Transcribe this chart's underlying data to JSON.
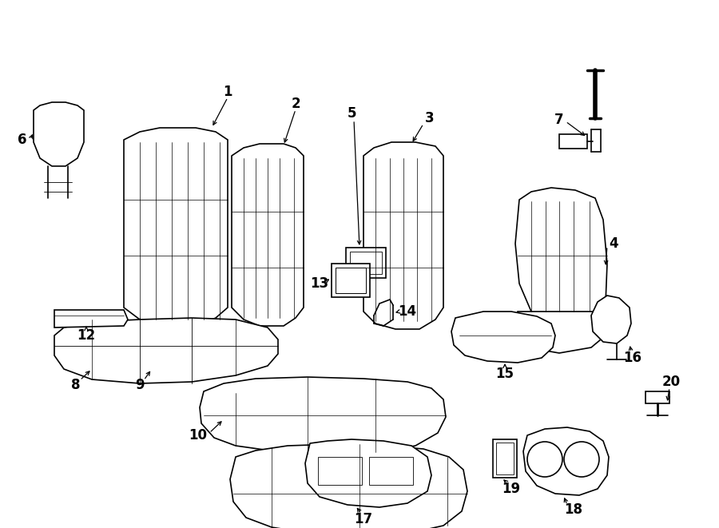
{
  "bg": "#ffffff",
  "lc": "#000000",
  "fw": 9.0,
  "fh": 6.61,
  "dpi": 100
}
